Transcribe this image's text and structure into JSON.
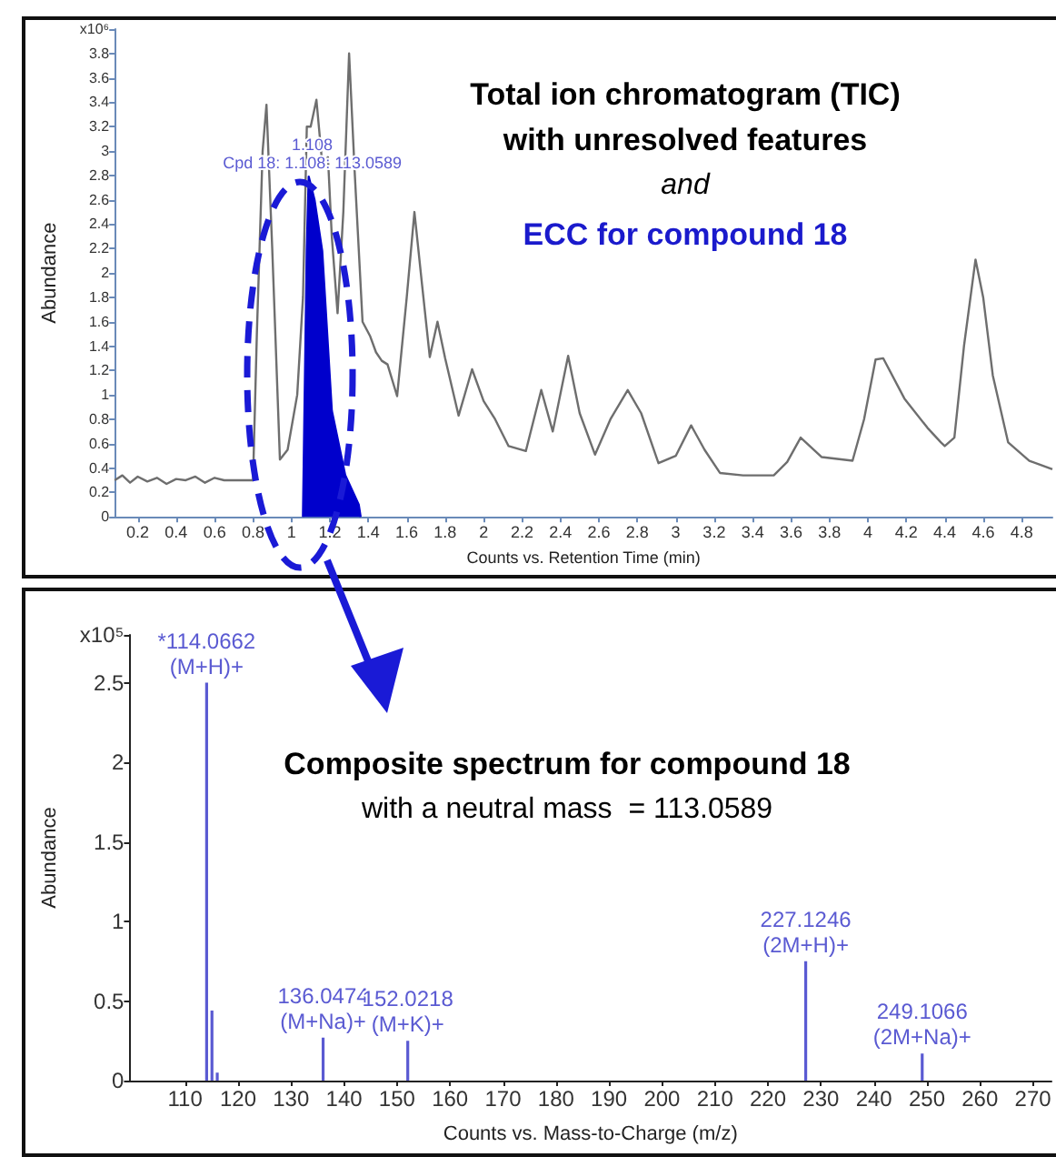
{
  "chart_data": [
    {
      "type": "line",
      "annotations": [
        "Total ion chromatogram (TIC)",
        "with unresolved features",
        "and",
        "ECC for compound 18",
        {
          "text": "1.108",
          "x": 1.108,
          "y": 2.95
        },
        {
          "text": "Cpd 18: 1.108: 113.0589",
          "x": 1.108,
          "y": 2.8
        }
      ],
      "xlabel": "Counts vs. Retention Time (min)",
      "ylabel": "Abundance",
      "xlim": [
        0.08,
        4.96
      ],
      "xticks": [
        0.2,
        0.4,
        0.6,
        0.8,
        1,
        1.2,
        1.4,
        1.6,
        1.8,
        2,
        2.2,
        2.4,
        2.6,
        2.8,
        3,
        3.2,
        3.4,
        3.6,
        3.8,
        4,
        4.2,
        4.4,
        4.6,
        4.8
      ],
      "ylim": [
        0,
        4
      ],
      "yticks": [
        0,
        0.2,
        0.4,
        0.6,
        0.8,
        1,
        1.2,
        1.4,
        1.6,
        1.8,
        2,
        2.2,
        2.4,
        2.6,
        2.8,
        3,
        3.2,
        3.4,
        3.6,
        3.8,
        {
          "value": 4,
          "label": "x10⁶"
        }
      ],
      "grid": false,
      "marker": "none",
      "line_style": "solid",
      "series": [
        {
          "color": "#6e6e6e",
          "x": [
            0.08,
            0.12,
            0.16,
            0.2,
            0.25,
            0.3,
            0.35,
            0.4,
            0.45,
            0.5,
            0.55,
            0.6,
            0.65,
            0.7,
            0.75,
            0.8,
            0.82,
            0.85,
            0.87,
            0.9,
            0.94,
            0.98,
            1.03,
            1.06,
            1.08,
            1.1,
            1.13,
            1.16,
            1.19,
            1.21,
            1.24,
            1.27,
            1.3,
            1.33,
            1.37,
            1.41,
            1.44,
            1.47,
            1.5,
            1.55,
            1.6,
            1.64,
            1.68,
            1.72,
            1.76,
            1.8,
            1.87,
            1.94,
            2.0,
            2.06,
            2.13,
            2.22,
            2.3,
            2.36,
            2.44,
            2.5,
            2.58,
            2.66,
            2.75,
            2.82,
            2.91,
            3.0,
            3.08,
            3.15,
            3.23,
            3.35,
            3.51,
            3.58,
            3.65,
            3.76,
            3.92,
            3.98,
            4.04,
            4.08,
            4.19,
            4.31,
            4.38,
            4.4,
            4.45,
            4.5,
            4.56,
            4.6,
            4.65,
            4.73,
            4.84,
            4.96
          ],
          "values": [
            0.3,
            0.34,
            0.28,
            0.33,
            0.29,
            0.32,
            0.27,
            0.31,
            0.3,
            0.33,
            0.28,
            0.32,
            0.3,
            0.3,
            0.3,
            0.3,
            1.5,
            3.0,
            3.38,
            2.2,
            0.47,
            0.55,
            1.0,
            1.8,
            3.2,
            3.2,
            3.42,
            2.9,
            2.95,
            2.3,
            1.67,
            2.5,
            3.8,
            2.8,
            1.6,
            1.48,
            1.35,
            1.28,
            1.25,
            0.99,
            1.8,
            2.5,
            1.9,
            1.31,
            1.6,
            1.3,
            0.83,
            1.21,
            0.95,
            0.8,
            0.58,
            0.54,
            1.04,
            0.7,
            1.32,
            0.85,
            0.51,
            0.8,
            1.04,
            0.85,
            0.44,
            0.5,
            0.75,
            0.55,
            0.36,
            0.34,
            0.34,
            0.45,
            0.65,
            0.49,
            0.46,
            0.8,
            1.29,
            1.3,
            0.97,
            0.73,
            0.61,
            0.58,
            0.65,
            1.4,
            2.11,
            1.8,
            1.16,
            0.61,
            0.46,
            0.39
          ]
        },
        {
          "type": "area",
          "color": "#0000cc",
          "x": [
            1.06,
            1.08,
            1.09,
            1.12,
            1.16,
            1.21,
            1.28,
            1.35,
            1.36
          ],
          "values": [
            0,
            2.2,
            2.79,
            2.6,
            2.18,
            0.87,
            0.34,
            0.1,
            0
          ]
        }
      ]
    },
    {
      "type": "bar",
      "annotations": [
        "Composite spectrum for compound 18",
        "with a neutral mass  = 113.0589",
        {
          "text": "*114.0662\n(M+H)+",
          "x": 114.0662,
          "y": 2.5
        },
        {
          "text": "136.0474\n(M+Na)+",
          "x": 136.0474,
          "y": 0.27
        },
        {
          "text": "152.0218\n(M+K)+",
          "x": 152.0218,
          "y": 0.25
        },
        {
          "text": "227.1246\n(2M+H)+",
          "x": 227.1246,
          "y": 0.75
        },
        {
          "text": "249.1066\n(2M+Na)+",
          "x": 249.1066,
          "y": 0.17
        }
      ],
      "xlabel": "Counts vs. Mass-to-Charge (m/z)",
      "ylabel": "Abundance",
      "xlim": [
        99.5,
        273.5
      ],
      "xticks": [
        110,
        120,
        130,
        140,
        150,
        160,
        170,
        180,
        190,
        200,
        210,
        220,
        230,
        240,
        250,
        260,
        270
      ],
      "ylim": [
        0,
        2.8
      ],
      "yticks": [
        0,
        0.5,
        1,
        1.5,
        2,
        2.5,
        {
          "value": 2.8,
          "label": "x10⁵"
        }
      ],
      "grid": false,
      "series": [
        {
          "color": "#5a5ad2",
          "x": [
            114.0662,
            115.07,
            116.07,
            136.0474,
            152.0218,
            227.1246,
            249.1066
          ],
          "values": [
            2.5,
            0.44,
            0.05,
            0.27,
            0.25,
            0.75,
            0.17
          ]
        }
      ]
    }
  ]
}
